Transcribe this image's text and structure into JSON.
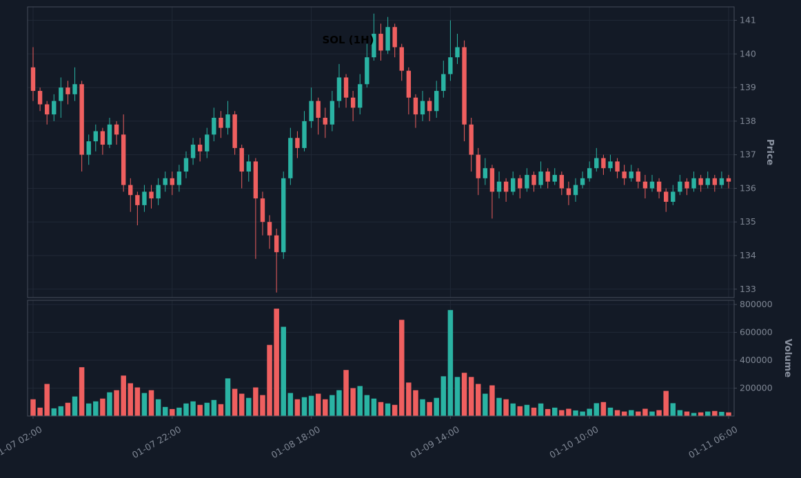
{
  "title": "SOL (1H)",
  "axes": {
    "price_label": "Price",
    "volume_label": "Volume"
  },
  "colors": {
    "up": "#2ab3a3",
    "down": "#ef5f5f",
    "background": "#131a26",
    "grid": "#202836",
    "border": "#454c59",
    "text": "#7f8794",
    "axis_title": "#8a92a0",
    "title": "#000000"
  },
  "chart_data": {
    "type": "candlestick",
    "title": "SOL (1H)",
    "symbol": "SOL",
    "interval": "1H",
    "legend_position": "none",
    "grid": true,
    "x_axis": {
      "tick_labels": [
        "01-07 02:00",
        "01-07 22:00",
        "01-08 18:00",
        "01-09 14:00",
        "01-10 10:00",
        "01-11 06:00"
      ],
      "tick_hours": [
        0,
        20,
        40,
        60,
        80,
        100
      ]
    },
    "price_axis": {
      "label": "Price",
      "ticks": [
        133,
        134,
        135,
        136,
        137,
        138,
        139,
        140,
        141
      ],
      "range": [
        132.75,
        141.4
      ]
    },
    "volume_axis": {
      "label": "Volume",
      "ticks": [
        200000,
        400000,
        600000,
        800000
      ],
      "range": [
        0,
        830000
      ]
    },
    "open": [
      139.6,
      138.9,
      138.5,
      138.2,
      138.6,
      139.0,
      138.8,
      139.1,
      137.0,
      137.4,
      137.7,
      137.3,
      137.9,
      137.6,
      136.1,
      135.8,
      135.5,
      135.9,
      135.7,
      136.1,
      136.3,
      136.1,
      136.5,
      136.9,
      137.3,
      137.1,
      137.6,
      138.1,
      137.8,
      138.2,
      137.2,
      136.5,
      136.8,
      135.7,
      135.0,
      134.6,
      134.1,
      136.3,
      137.5,
      137.2,
      138.0,
      138.6,
      138.1,
      137.9,
      138.6,
      139.3,
      138.7,
      138.4,
      139.1,
      139.9,
      140.6,
      140.1,
      140.8,
      140.2,
      139.5,
      138.7,
      138.2,
      138.6,
      138.3,
      138.9,
      139.4,
      139.9,
      140.2,
      137.9,
      137.0,
      136.3,
      136.6,
      135.9,
      136.2,
      135.9,
      136.3,
      136.0,
      136.4,
      136.1,
      136.5,
      136.2,
      136.4,
      136.0,
      135.8,
      136.1,
      136.3,
      136.6,
      136.9,
      136.6,
      136.8,
      136.5,
      136.3,
      136.5,
      136.2,
      136.0,
      136.2,
      135.9,
      135.6,
      135.9,
      136.2,
      136.0,
      136.3,
      136.1,
      136.3,
      136.1,
      136.3
    ],
    "high": [
      140.2,
      139.0,
      138.6,
      138.8,
      139.3,
      139.2,
      139.6,
      139.2,
      137.6,
      137.9,
      137.8,
      138.1,
      138.0,
      138.2,
      136.3,
      135.9,
      136.1,
      136.1,
      136.3,
      136.5,
      136.5,
      136.7,
      137.1,
      137.5,
      137.5,
      137.8,
      138.4,
      138.3,
      138.6,
      138.3,
      137.3,
      137.0,
      136.9,
      135.9,
      135.2,
      134.8,
      136.5,
      137.8,
      137.7,
      138.3,
      139.0,
      138.7,
      138.4,
      138.9,
      139.7,
      139.4,
      138.9,
      139.4,
      140.3,
      141.2,
      140.9,
      141.1,
      140.9,
      140.3,
      139.6,
      138.8,
      138.9,
      138.7,
      139.2,
      139.8,
      141.0,
      140.6,
      140.4,
      138.1,
      137.2,
      136.9,
      136.7,
      136.5,
      136.3,
      136.5,
      136.4,
      136.6,
      136.5,
      136.8,
      136.6,
      136.6,
      136.5,
      136.2,
      136.3,
      136.5,
      136.8,
      137.2,
      137.0,
      137.0,
      136.9,
      136.7,
      136.7,
      136.6,
      136.4,
      136.4,
      136.3,
      136.0,
      136.1,
      136.4,
      136.3,
      136.5,
      136.4,
      136.5,
      136.4,
      136.5,
      136.4
    ],
    "low": [
      138.6,
      138.3,
      137.9,
      138.0,
      138.1,
      138.5,
      138.6,
      136.5,
      136.7,
      137.1,
      137.0,
      137.2,
      137.3,
      135.9,
      135.3,
      134.9,
      135.3,
      135.4,
      135.5,
      135.9,
      135.8,
      135.9,
      136.3,
      136.7,
      136.8,
      136.9,
      137.4,
      137.5,
      137.6,
      137.0,
      136.0,
      136.2,
      133.9,
      134.6,
      134.2,
      132.9,
      133.9,
      136.1,
      136.9,
      137.1,
      137.8,
      137.6,
      137.5,
      137.7,
      138.4,
      138.4,
      138.0,
      138.2,
      139.0,
      139.8,
      139.8,
      140.0,
      139.9,
      139.2,
      138.2,
      137.8,
      138.0,
      138.0,
      138.1,
      138.7,
      139.2,
      139.7,
      137.4,
      136.5,
      135.8,
      136.1,
      135.1,
      135.7,
      135.6,
      135.8,
      135.7,
      135.9,
      135.9,
      136.0,
      136.0,
      136.1,
      135.8,
      135.5,
      135.6,
      136.0,
      136.2,
      136.5,
      136.4,
      136.5,
      136.3,
      136.1,
      136.2,
      136.0,
      135.7,
      135.9,
      135.7,
      135.3,
      135.5,
      135.8,
      135.8,
      135.9,
      135.9,
      136.0,
      135.9,
      136.0,
      136.0
    ],
    "close": [
      138.9,
      138.5,
      138.2,
      138.6,
      139.0,
      138.8,
      139.1,
      137.0,
      137.4,
      137.7,
      137.3,
      137.9,
      137.6,
      136.1,
      135.8,
      135.5,
      135.9,
      135.7,
      136.1,
      136.3,
      136.1,
      136.5,
      136.9,
      137.3,
      137.1,
      137.6,
      138.1,
      137.8,
      138.2,
      137.2,
      136.5,
      136.8,
      135.7,
      135.0,
      134.6,
      134.1,
      136.3,
      137.5,
      137.2,
      138.0,
      138.6,
      138.1,
      137.9,
      138.6,
      139.3,
      138.7,
      138.4,
      139.1,
      139.9,
      140.6,
      140.1,
      140.8,
      140.2,
      139.5,
      138.7,
      138.2,
      138.6,
      138.3,
      138.9,
      139.4,
      139.9,
      140.2,
      137.9,
      137.0,
      136.3,
      136.6,
      135.9,
      136.2,
      135.9,
      136.3,
      136.0,
      136.4,
      136.1,
      136.5,
      136.2,
      136.4,
      136.0,
      135.8,
      136.1,
      136.3,
      136.6,
      136.9,
      136.6,
      136.8,
      136.5,
      136.3,
      136.5,
      136.2,
      136.0,
      136.2,
      135.9,
      135.6,
      135.9,
      136.2,
      136.0,
      136.3,
      136.1,
      136.3,
      136.1,
      136.3,
      136.2
    ],
    "volume": [
      120000,
      60000,
      230000,
      55000,
      70000,
      95000,
      140000,
      350000,
      90000,
      105000,
      125000,
      170000,
      185000,
      290000,
      235000,
      205000,
      165000,
      185000,
      120000,
      65000,
      50000,
      60000,
      90000,
      105000,
      80000,
      95000,
      115000,
      85000,
      270000,
      195000,
      160000,
      130000,
      205000,
      150000,
      510000,
      770000,
      640000,
      165000,
      120000,
      135000,
      145000,
      160000,
      120000,
      150000,
      185000,
      330000,
      200000,
      215000,
      150000,
      125000,
      100000,
      90000,
      80000,
      690000,
      240000,
      185000,
      120000,
      100000,
      130000,
      285000,
      760000,
      280000,
      310000,
      280000,
      230000,
      160000,
      220000,
      130000,
      120000,
      90000,
      70000,
      80000,
      60000,
      90000,
      50000,
      60000,
      42000,
      52000,
      40000,
      32000,
      52000,
      92000,
      100000,
      60000,
      42000,
      32000,
      42000,
      32000,
      52000,
      32000,
      42000,
      180000,
      92000,
      42000,
      32000,
      22000,
      26000,
      32000,
      36000,
      30000,
      26000
    ]
  }
}
